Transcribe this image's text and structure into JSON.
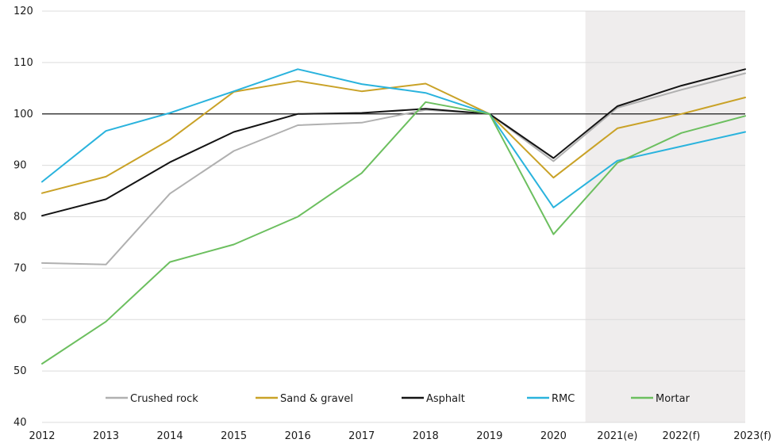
{
  "chart_data": {
    "type": "line",
    "title": "",
    "xlabel": "",
    "ylabel": "",
    "categories": [
      "2012",
      "2013",
      "2014",
      "2015",
      "2016",
      "2017",
      "2018",
      "2019",
      "2020",
      "2021(e)",
      "2022(f)",
      "2023(f)"
    ],
    "ylim": [
      40,
      120
    ],
    "yticks": [
      40,
      50,
      60,
      70,
      80,
      90,
      100,
      110,
      120
    ],
    "grid": true,
    "reference_line": 100,
    "forecast_shading": {
      "from": "2021(e)",
      "to": "2023(f)",
      "color": "#efeded"
    },
    "legend_position": "bottom-inside",
    "series": [
      {
        "name": "Crushed rock",
        "color": "#b0b0b0",
        "values": [
          71,
          70.7,
          84.5,
          92.8,
          97.8,
          98.3,
          100.8,
          100,
          90.8,
          101.2,
          104.7,
          107.9
        ]
      },
      {
        "name": "Sand & gravel",
        "color": "#c9a227",
        "values": [
          84.6,
          87.8,
          95,
          104.3,
          106.4,
          104.4,
          105.9,
          100,
          87.6,
          97.2,
          100,
          103.2
        ]
      },
      {
        "name": "Asphalt",
        "color": "#141414",
        "values": [
          80.2,
          83.4,
          90.6,
          96.5,
          100,
          100.2,
          101,
          100,
          91.4,
          101.5,
          105.5,
          108.7
        ]
      },
      {
        "name": "RMC",
        "color": "#2ab3dd",
        "values": [
          86.8,
          96.7,
          100.2,
          104.4,
          108.7,
          105.8,
          104.1,
          100,
          81.8,
          90.9,
          93.7,
          96.5
        ]
      },
      {
        "name": "Mortar",
        "color": "#6cbf5f",
        "values": [
          51.4,
          59.6,
          71.2,
          74.6,
          80,
          88.5,
          102.3,
          100,
          76.6,
          90.5,
          96.3,
          99.6
        ]
      }
    ]
  }
}
